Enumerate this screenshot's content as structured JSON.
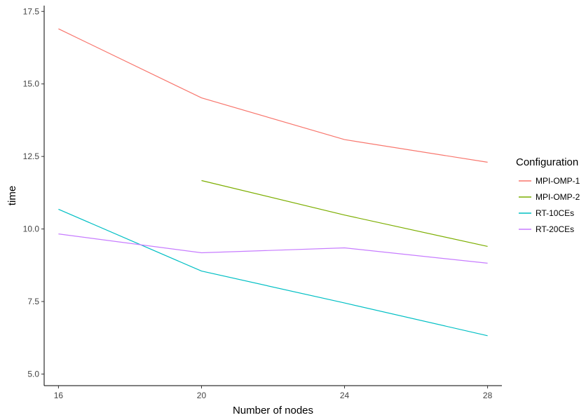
{
  "chart_data": {
    "type": "line",
    "title": "",
    "xlabel": "Number of nodes",
    "ylabel": "time",
    "x_ticks": [
      "16",
      "20",
      "24",
      "28"
    ],
    "y_ticks": [
      "5.0",
      "7.5",
      "10.0",
      "12.5",
      "15.0",
      "17.5"
    ],
    "xlim": [
      15.6,
      28.4
    ],
    "ylim": [
      4.6,
      17.7
    ],
    "grid": false,
    "legend": {
      "title": "Configuration",
      "placement": "right"
    },
    "series": [
      {
        "name": "MPI-OMP-1",
        "color": "#F8766D",
        "x": [
          16,
          20,
          24,
          28
        ],
        "y": [
          16.9,
          14.52,
          13.08,
          12.3
        ]
      },
      {
        "name": "MPI-OMP-2",
        "color": "#7CAE00",
        "x": [
          20,
          24,
          28
        ],
        "y": [
          11.67,
          10.48,
          9.4
        ]
      },
      {
        "name": "RT-10CEs",
        "color": "#00BFC4",
        "x": [
          16,
          20,
          24,
          28
        ],
        "y": [
          10.68,
          8.55,
          7.45,
          6.32
        ]
      },
      {
        "name": "RT-20CEs",
        "color": "#C77CFF",
        "x": [
          16,
          20,
          24,
          28
        ],
        "y": [
          9.83,
          9.18,
          9.35,
          8.82
        ]
      }
    ]
  }
}
